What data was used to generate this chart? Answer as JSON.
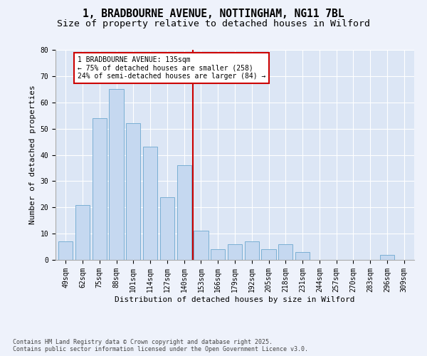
{
  "title_line1": "1, BRADBOURNE AVENUE, NOTTINGHAM, NG11 7BL",
  "title_line2": "Size of property relative to detached houses in Wilford",
  "xlabel": "Distribution of detached houses by size in Wilford",
  "ylabel": "Number of detached properties",
  "categories": [
    "49sqm",
    "62sqm",
    "75sqm",
    "88sqm",
    "101sqm",
    "114sqm",
    "127sqm",
    "140sqm",
    "153sqm",
    "166sqm",
    "179sqm",
    "192sqm",
    "205sqm",
    "218sqm",
    "231sqm",
    "244sqm",
    "257sqm",
    "270sqm",
    "283sqm",
    "296sqm",
    "309sqm"
  ],
  "values": [
    7,
    21,
    54,
    65,
    52,
    43,
    24,
    36,
    11,
    4,
    6,
    7,
    4,
    6,
    3,
    0,
    0,
    0,
    0,
    2,
    0
  ],
  "bar_color": "#c5d8f0",
  "bar_edge_color": "#7aafd4",
  "vline_x_index": 7.5,
  "annotation_line1": "1 BRADBOURNE AVENUE: 135sqm",
  "annotation_line2": "← 75% of detached houses are smaller (258)",
  "annotation_line3": "24% of semi-detached houses are larger (84) →",
  "annotation_box_facecolor": "#ffffff",
  "annotation_box_edgecolor": "#cc0000",
  "vline_color": "#cc0000",
  "ylim": [
    0,
    80
  ],
  "yticks": [
    0,
    10,
    20,
    30,
    40,
    50,
    60,
    70,
    80
  ],
  "bg_color": "#dce6f5",
  "fig_bg_color": "#eef2fb",
  "footer_line1": "Contains HM Land Registry data © Crown copyright and database right 2025.",
  "footer_line2": "Contains public sector information licensed under the Open Government Licence v3.0.",
  "title_fontsize": 10.5,
  "subtitle_fontsize": 9.5,
  "tick_fontsize": 7,
  "axis_label_fontsize": 8,
  "footer_fontsize": 6,
  "annot_fontsize": 7
}
